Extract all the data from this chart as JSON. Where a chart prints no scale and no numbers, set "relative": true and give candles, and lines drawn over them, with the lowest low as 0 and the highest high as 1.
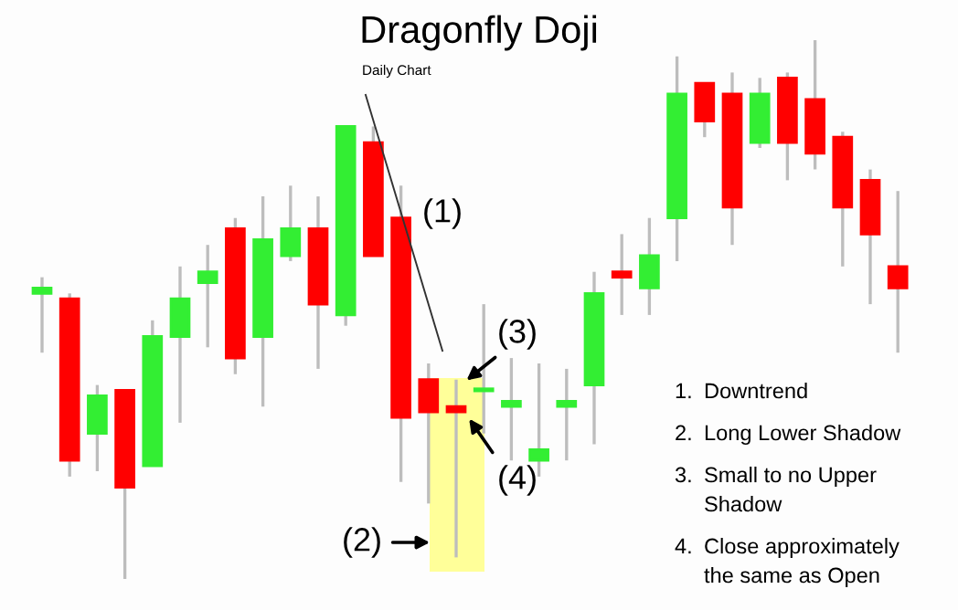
{
  "chart_data": {
    "type": "candlestick",
    "relative": true,
    "title": "Dragonfly Doji",
    "subtitle": "Daily Chart",
    "categories": [
      null,
      null,
      null,
      null,
      null,
      null,
      null,
      null,
      null,
      null,
      null,
      null,
      null,
      null,
      null,
      null,
      null,
      null,
      null,
      null,
      null,
      null,
      null,
      null,
      null,
      null,
      null,
      null,
      null,
      null,
      null,
      null
    ],
    "ohlc": [
      [
        0.53,
        0.56,
        0.42,
        0.54
      ],
      [
        0.52,
        0.53,
        0.19,
        0.22
      ],
      [
        0.27,
        0.36,
        0.2,
        0.34
      ],
      [
        0.35,
        0.35,
        0.0,
        0.17
      ],
      [
        0.21,
        0.48,
        0.21,
        0.45
      ],
      [
        0.45,
        0.58,
        0.29,
        0.52
      ],
      [
        0.55,
        0.62,
        0.43,
        0.57
      ],
      [
        0.65,
        0.67,
        0.38,
        0.41
      ],
      [
        0.45,
        0.71,
        0.32,
        0.63
      ],
      [
        0.6,
        0.73,
        0.59,
        0.65
      ],
      [
        0.65,
        0.71,
        0.39,
        0.51
      ],
      [
        0.49,
        0.84,
        0.47,
        0.84
      ],
      [
        0.81,
        0.84,
        0.6,
        0.6
      ],
      [
        0.67,
        0.73,
        0.18,
        0.3
      ],
      [
        0.37,
        0.4,
        0.14,
        0.31
      ],
      [
        0.32,
        0.37,
        0.04,
        0.31
      ],
      [
        0.349,
        0.51,
        0.27,
        0.353
      ],
      [
        0.32,
        0.41,
        0.22,
        0.33
      ],
      [
        0.22,
        0.4,
        0.19,
        0.24
      ],
      [
        0.32,
        0.39,
        0.22,
        0.33
      ],
      [
        0.36,
        0.57,
        0.25,
        0.53
      ],
      [
        0.57,
        0.64,
        0.49,
        0.56
      ],
      [
        0.54,
        0.67,
        0.49,
        0.6
      ],
      [
        0.67,
        0.97,
        0.59,
        0.9
      ],
      [
        0.92,
        0.92,
        0.82,
        0.85
      ],
      [
        0.9,
        0.94,
        0.62,
        0.69
      ],
      [
        0.81,
        0.93,
        0.8,
        0.9
      ],
      [
        0.93,
        0.94,
        0.74,
        0.81
      ],
      [
        0.89,
        1.0,
        0.76,
        0.79
      ],
      [
        0.82,
        0.83,
        0.58,
        0.69
      ],
      [
        0.74,
        0.76,
        0.51,
        0.64
      ],
      [
        0.58,
        0.72,
        0.42,
        0.54
      ]
    ],
    "colors": [
      "#33ee33",
      "#ff0000",
      "#33ee33",
      "#ff0000",
      "#33ee33",
      "#33ee33",
      "#33ee33",
      "#ff0000",
      "#33ee33",
      "#33ee33",
      "#ff0000",
      "#33ee33",
      "#ff0000",
      "#ff0000",
      "#ff0000",
      "#ff0000",
      "#33ee33",
      "#33ee33",
      "#33ee33",
      "#33ee33",
      "#33ee33",
      "#ff0000",
      "#33ee33",
      "#33ee33",
      "#ff0000",
      "#ff0000",
      "#33ee33",
      "#ff0000",
      "#ff0000",
      "#ff0000",
      "#ff0000",
      "#ff0000"
    ],
    "annotations": [
      "(1)",
      "(2)",
      "(3)",
      "(4)",
      "1. Downtrend",
      "2. Long Lower Shadow",
      "3. Small to no Upper Shadow",
      "4. Close approximately the same as Open"
    ]
  }
}
